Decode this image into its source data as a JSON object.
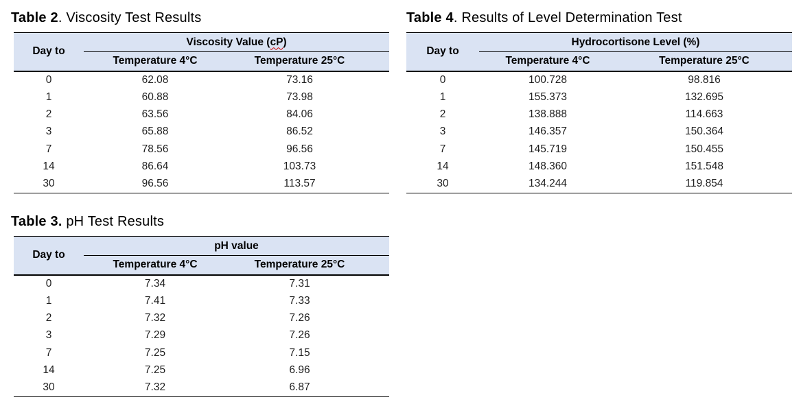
{
  "styles": {
    "header_bg": "#dae3f3",
    "line_color": "#000000",
    "squiggle_color": "#cc0000",
    "text_color": "#1f1f1f",
    "page_bg": "#ffffff"
  },
  "tables": {
    "viscosity": {
      "caption_bold": "Table 2",
      "caption_rest": ". Viscosity Test Results",
      "day_header": "Day to",
      "spanner_prefix": "Viscosity Value (",
      "spanner_misspelled": "cP",
      "spanner_suffix": ")",
      "col_headers": {
        "temp4": "Temperature 4°C",
        "temp25": "Temperature 25°C"
      },
      "rows": [
        [
          "0",
          "62.08",
          "73.16"
        ],
        [
          "1",
          "60.88",
          "73.98"
        ],
        [
          "2",
          "63.56",
          "84.06"
        ],
        [
          "3",
          "65.88",
          "86.52"
        ],
        [
          "7",
          "78.56",
          "96.56"
        ],
        [
          "14",
          "86.64",
          "103.73"
        ],
        [
          "30",
          "96.56",
          "113.57"
        ]
      ]
    },
    "ph": {
      "caption_bold": "Table 3.",
      "caption_rest": " pH Test Results",
      "day_header": "Day to",
      "spanner_prefix": "pH value",
      "spanner_misspelled": "",
      "spanner_suffix": "",
      "col_headers": {
        "temp4": "Temperature 4°C",
        "temp25": "Temperature 25°C"
      },
      "rows": [
        [
          "0",
          "7.34",
          "7.31"
        ],
        [
          "1",
          "7.41",
          "7.33"
        ],
        [
          "2",
          "7.32",
          "7.26"
        ],
        [
          "3",
          "7.29",
          "7.26"
        ],
        [
          "7",
          "7.25",
          "7.15"
        ],
        [
          "14",
          "7.25",
          "6.96"
        ],
        [
          "30",
          "7.32",
          "6.87"
        ]
      ]
    },
    "level": {
      "caption_bold": "Table 4",
      "caption_rest": ". Results of Level Determination Test",
      "day_header": "Day to",
      "spanner_prefix": "Hydrocortisone Level (%)",
      "spanner_misspelled": "",
      "spanner_suffix": "",
      "col_headers": {
        "temp4": "Temperature 4°C",
        "temp25": "Temperature 25°C"
      },
      "rows": [
        [
          "0",
          "100.728",
          "98.816"
        ],
        [
          "1",
          "155.373",
          "132.695"
        ],
        [
          "2",
          "138.888",
          "114.663"
        ],
        [
          "3",
          "146.357",
          "150.364"
        ],
        [
          "7",
          "145.719",
          "150.455"
        ],
        [
          "14",
          "148.360",
          "151.548"
        ],
        [
          "30",
          "134.244",
          "119.854"
        ]
      ]
    }
  }
}
